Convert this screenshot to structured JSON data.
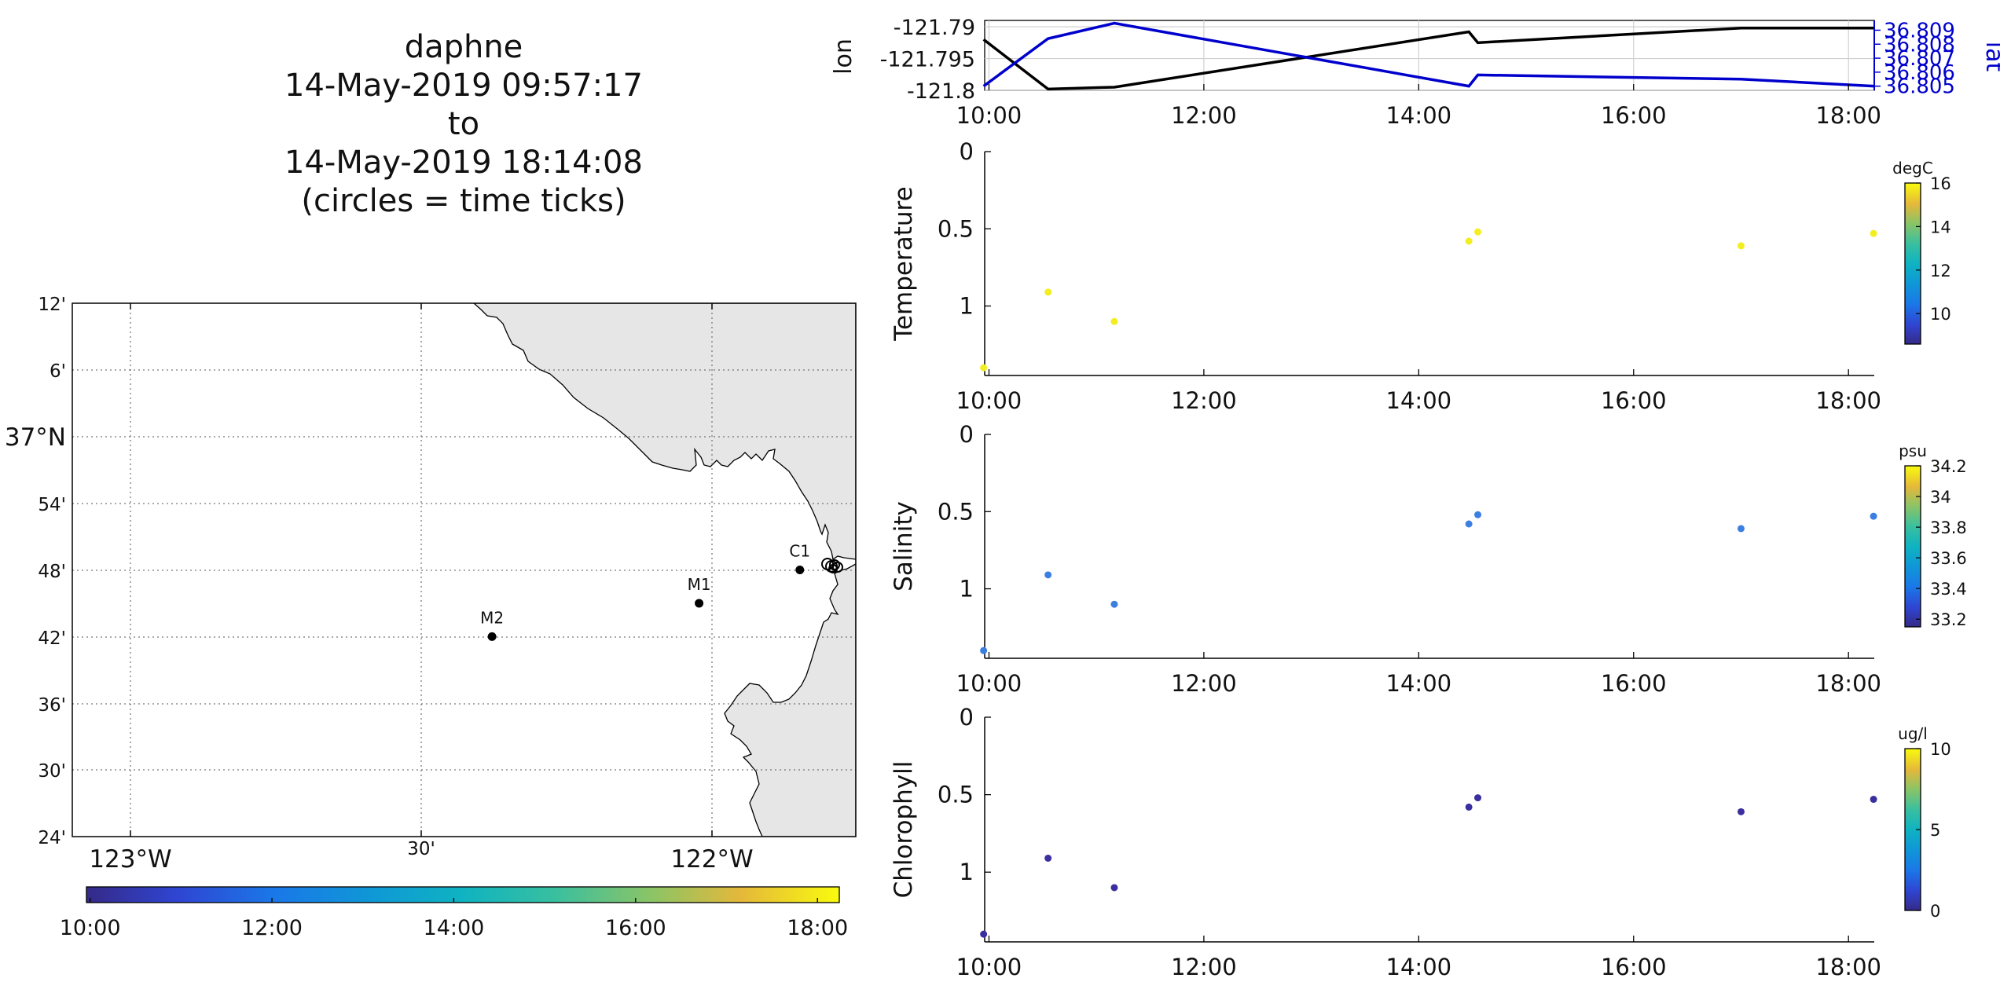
{
  "title_lines": [
    "daphne",
    "14-May-2019 09:57:17",
    "to",
    "14-May-2019 18:14:08",
    "(circles = time ticks)"
  ],
  "colors": {
    "land": "#e6e6e6",
    "track_lon": "#000000",
    "track_lat": "#0000cc",
    "points_temperature": "#f2ee22",
    "points_salinity": "#3b7fe0",
    "points_chlorophyll": "#3b2fa0"
  },
  "map": {
    "lat_tick_labels": [
      "12'",
      "6'",
      "37°N",
      "54'",
      "48'",
      "42'",
      "36'",
      "30'",
      "24'"
    ],
    "lon_tick_labels": [
      "123°W",
      "30'",
      "122°W"
    ],
    "lat_range": [
      36.4,
      37.2
    ],
    "lon_range": [
      -123.1,
      -121.7
    ],
    "stations": [
      {
        "name": "M2",
        "lon": -122.35,
        "lat": 36.7
      },
      {
        "name": "M1",
        "lon": -121.98,
        "lat": 36.75
      },
      {
        "name": "C1",
        "lon": -121.8,
        "lat": 36.8
      }
    ],
    "colorbar_ticks": [
      "10:00",
      "12:00",
      "14:00",
      "16:00",
      "18:00"
    ],
    "colorbar_range_hours": [
      9.96,
      18.24
    ]
  },
  "chart_data": [
    {
      "type": "line",
      "name": "position",
      "x": [
        "09:57",
        "10:33",
        "11:10",
        "14:28",
        "14:33",
        "17:00",
        "18:14"
      ],
      "series": [
        {
          "name": "lon",
          "values": [
            -121.792,
            -121.7998,
            -121.7995,
            -121.7908,
            -121.7925,
            -121.7902,
            -121.7902
          ]
        },
        {
          "name": "lat",
          "values": [
            36.805,
            36.8084,
            36.8095,
            36.805,
            36.8058,
            36.8055,
            36.805
          ]
        }
      ],
      "ylabel": "lon",
      "y2label": "lat",
      "yticks": [
        "-121.79",
        "-121.795",
        "-121.8"
      ],
      "y2ticks": [
        "36.809",
        "36.808",
        "36.807",
        "36.806",
        "36.805"
      ],
      "xticks": [
        "10:00",
        "12:00",
        "14:00",
        "16:00",
        "18:00"
      ],
      "ylim": [
        -121.8,
        -121.789
      ],
      "y2lim": [
        36.8047,
        36.8097
      ],
      "grid": true
    },
    {
      "type": "scatter",
      "name": "temperature",
      "x": [
        "09:57",
        "10:33",
        "11:10",
        "14:28",
        "14:33",
        "17:00",
        "18:14"
      ],
      "values": [
        1.4,
        0.91,
        1.1,
        0.58,
        0.52,
        0.61,
        0.53
      ],
      "ylabel": "Temperature",
      "yticks": [
        "0",
        "0.5",
        "1"
      ],
      "xticks": [
        "10:00",
        "12:00",
        "14:00",
        "16:00",
        "18:00"
      ],
      "ylim": [
        0,
        1.45
      ],
      "colorbar": {
        "unit": "degC",
        "ticks": [
          "16",
          "14",
          "12",
          "10"
        ],
        "range": [
          8.6,
          16
        ]
      }
    },
    {
      "type": "scatter",
      "name": "salinity",
      "x": [
        "09:57",
        "10:33",
        "11:10",
        "14:28",
        "14:33",
        "17:00",
        "18:14"
      ],
      "values": [
        1.4,
        0.91,
        1.1,
        0.58,
        0.52,
        0.61,
        0.53
      ],
      "ylabel": "Salinity",
      "yticks": [
        "0",
        "0.5",
        "1"
      ],
      "xticks": [
        "10:00",
        "12:00",
        "14:00",
        "16:00",
        "18:00"
      ],
      "ylim": [
        0,
        1.45
      ],
      "colorbar": {
        "unit": "psu",
        "ticks": [
          "34.2",
          "34",
          "33.8",
          "33.6",
          "33.4",
          "33.2"
        ],
        "range": [
          33.15,
          34.2
        ]
      }
    },
    {
      "type": "scatter",
      "name": "chlorophyll",
      "x": [
        "09:57",
        "10:33",
        "11:10",
        "14:28",
        "14:33",
        "17:00",
        "18:14"
      ],
      "values": [
        1.4,
        0.91,
        1.1,
        0.58,
        0.52,
        0.61,
        0.53
      ],
      "ylabel": "Chlorophyll",
      "yticks": [
        "0",
        "0.5",
        "1"
      ],
      "xticks": [
        "10:00",
        "12:00",
        "14:00",
        "16:00",
        "18:00"
      ],
      "ylim": [
        0,
        1.45
      ],
      "colorbar": {
        "unit": "ug/l",
        "ticks": [
          "10",
          "5",
          "0"
        ],
        "range": [
          0,
          10
        ]
      }
    }
  ]
}
